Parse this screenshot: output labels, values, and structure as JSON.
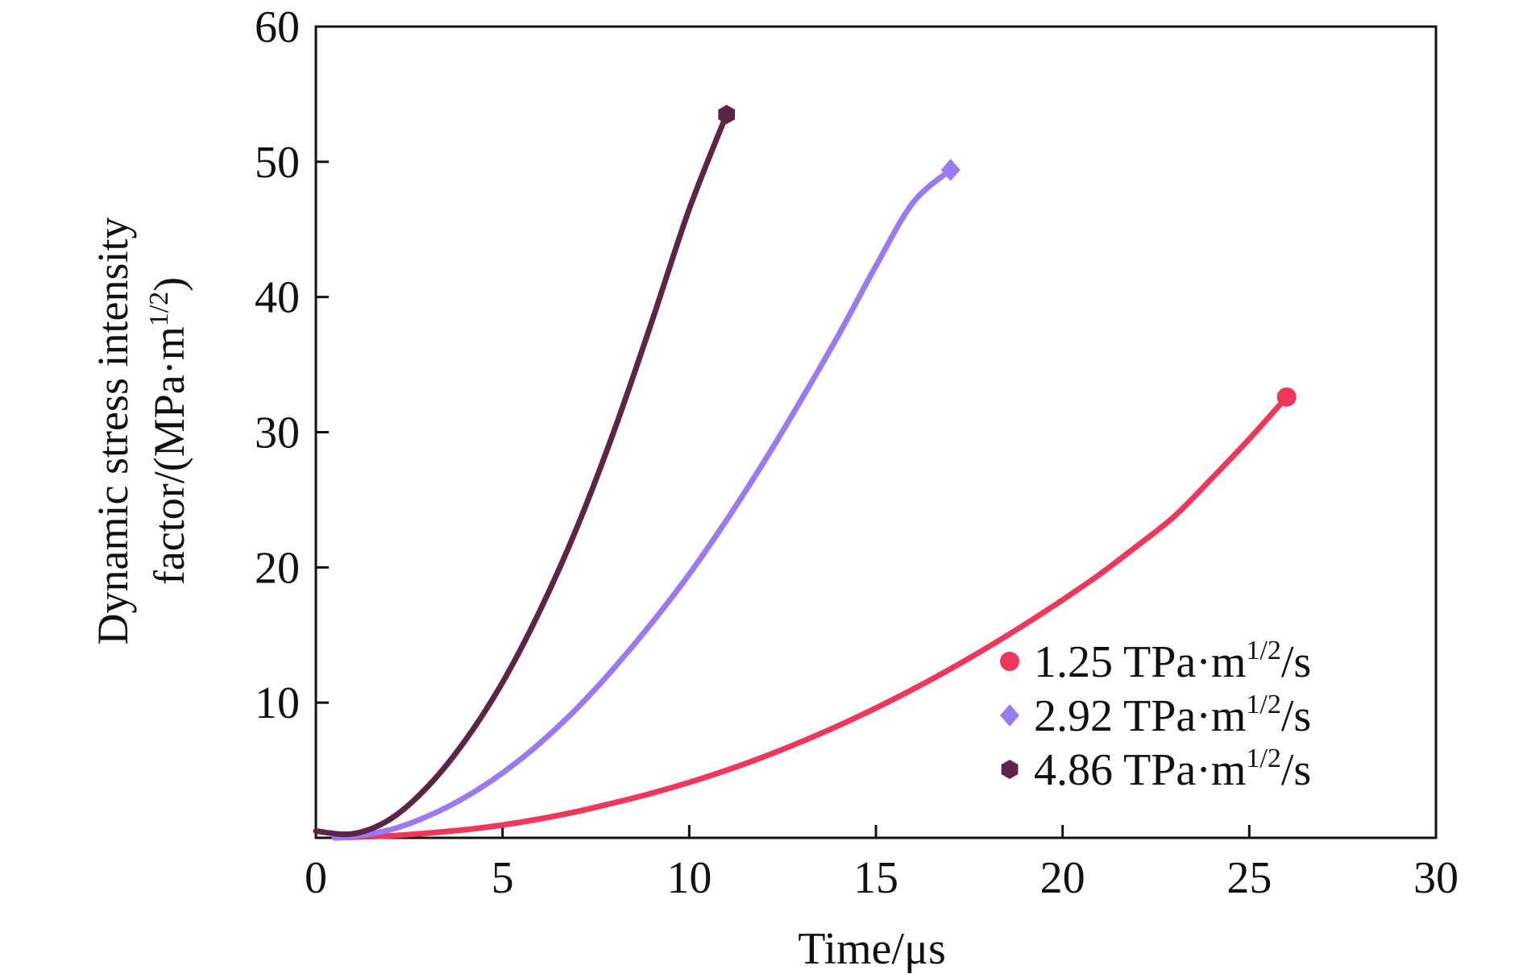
{
  "chart_data": {
    "type": "line",
    "xlabel": "Time/μs",
    "ylabel_line1": "Dynamic stress intensity",
    "ylabel_line2_base": "factor/(MPa·m",
    "ylabel_line2_sup": "1/2",
    "ylabel_line2_tail": ")",
    "xlim": [
      0,
      30
    ],
    "ylim": [
      0,
      60
    ],
    "x_ticks": [
      0,
      5,
      10,
      15,
      20,
      25,
      30
    ],
    "y_ticks": [
      10,
      20,
      30,
      40,
      50,
      60
    ],
    "grid": false,
    "legend_position": "bottom-right",
    "series": [
      {
        "name_base": "1.25 TPa·m",
        "name_sup": "1/2",
        "name_tail": "/s",
        "color": "#f0365a",
        "marker": "circle",
        "x": [
          0.5,
          1,
          2,
          3,
          4,
          5,
          6,
          7,
          8,
          9,
          10,
          11,
          12,
          13,
          14,
          15,
          16,
          17,
          18,
          19,
          20,
          21,
          22,
          23,
          24,
          25,
          26
        ],
        "y": [
          0,
          0.05,
          0.15,
          0.35,
          0.6,
          0.95,
          1.4,
          1.95,
          2.6,
          3.3,
          4.1,
          5.0,
          6.0,
          7.1,
          8.3,
          9.6,
          11.0,
          12.5,
          14.1,
          15.8,
          17.6,
          19.5,
          21.6,
          23.8,
          26.6,
          29.5,
          32.6
        ]
      },
      {
        "name_base": "2.92 TPa·m",
        "name_sup": "1/2",
        "name_tail": "/s",
        "color": "#9b79f5",
        "marker": "diamond",
        "x": [
          0.5,
          1,
          2,
          3,
          4,
          5,
          6,
          7,
          8,
          9,
          10,
          11,
          12,
          13,
          14,
          15,
          16,
          17
        ],
        "y": [
          0,
          0.1,
          0.6,
          1.6,
          3.0,
          4.8,
          7.0,
          9.6,
          12.6,
          15.9,
          19.5,
          23.5,
          27.8,
          32.4,
          37.2,
          42.3,
          47.0,
          49.4
        ]
      },
      {
        "name_base": "4.86 TPa·m",
        "name_sup": "1/2",
        "name_tail": "/s",
        "color": "#5e2448",
        "marker": "hexagon",
        "x": [
          0,
          1,
          2,
          3,
          4,
          5,
          6,
          7,
          8,
          9,
          10,
          11
        ],
        "y": [
          0.5,
          0.3,
          1.4,
          3.8,
          7.2,
          11.5,
          16.8,
          23.0,
          30.2,
          38.2,
          46.5,
          53.5
        ]
      }
    ]
  }
}
